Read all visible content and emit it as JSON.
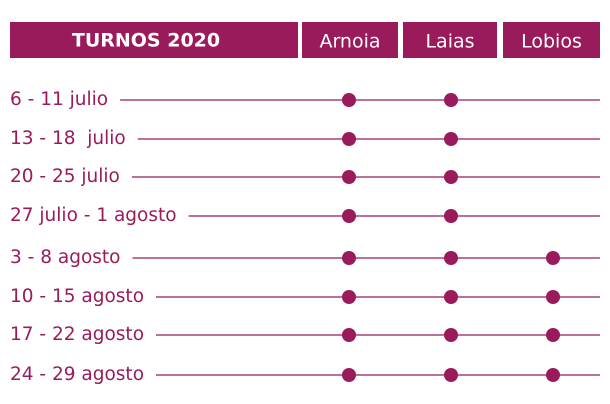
{
  "header": {
    "title": "TURNOS 2020",
    "columns": [
      "Arnoia",
      "Laias",
      "Lobios"
    ]
  },
  "rows": [
    {
      "label": "6 - 11 julio",
      "turns": [
        true,
        true,
        false
      ]
    },
    {
      "label": "13 - 18  julio",
      "turns": [
        true,
        true,
        false
      ]
    },
    {
      "label": "20 - 25 julio",
      "turns": [
        true,
        true,
        false
      ]
    },
    {
      "label": "27 julio - 1 agosto",
      "turns": [
        true,
        true,
        false
      ]
    },
    {
      "label": "3 - 8 agosto",
      "turns": [
        true,
        true,
        true
      ]
    },
    {
      "label": "10 - 15 agosto",
      "turns": [
        true,
        true,
        true
      ]
    },
    {
      "label": "17 - 22 agosto",
      "turns": [
        true,
        true,
        true
      ]
    },
    {
      "label": "24 - 29 agosto",
      "turns": [
        true,
        true,
        true
      ]
    }
  ]
}
